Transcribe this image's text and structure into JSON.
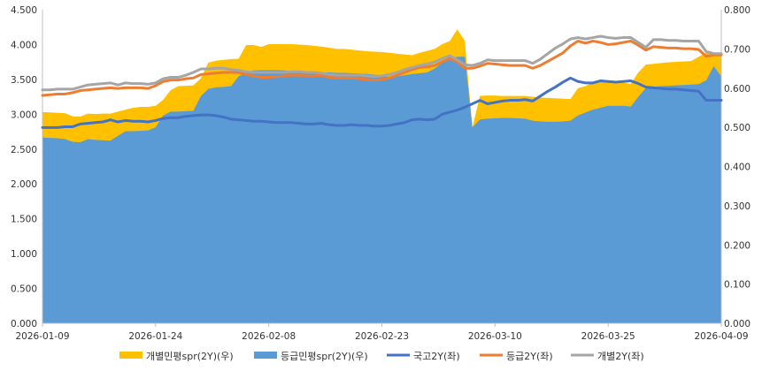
{
  "chart_data": {
    "type": "area",
    "title": "",
    "xlabel": "",
    "ylabel": "",
    "left_ylim": [
      0,
      4.5
    ],
    "right_ylim": [
      0,
      0.8
    ],
    "left_ticks": [
      "0.000",
      "0.500",
      "1.000",
      "1.500",
      "2.000",
      "2.500",
      "3.000",
      "3.500",
      "4.000",
      "4.500"
    ],
    "right_ticks": [
      "0.000",
      "0.100",
      "0.200",
      "0.300",
      "0.400",
      "0.500",
      "0.600",
      "0.700",
      "0.800"
    ],
    "x_ticks": [
      "2026-01-09",
      "2026-01-24",
      "2026-02-08",
      "2026-02-23",
      "2026-03-10",
      "2026-03-25",
      "2026-04-09"
    ],
    "x": [
      0,
      1,
      2,
      3,
      4,
      5,
      6,
      7,
      8,
      9,
      10,
      11,
      12,
      13,
      14,
      15,
      16,
      17,
      18,
      19,
      20,
      21,
      22,
      23,
      24,
      25,
      26,
      27,
      28,
      29,
      30,
      31,
      32,
      33,
      34,
      35,
      36,
      37,
      38,
      39,
      40,
      41,
      42,
      43,
      44,
      45,
      46,
      47,
      48,
      49,
      50,
      51,
      52,
      53,
      54,
      55,
      56,
      57,
      58,
      59,
      60,
      61,
      62,
      63,
      64,
      65,
      66,
      67,
      68,
      69,
      70,
      71,
      72,
      73,
      74,
      75,
      76,
      77,
      78,
      79,
      80,
      81,
      82,
      83,
      84,
      85,
      86,
      87,
      88,
      89,
      90
    ],
    "dates": [
      "2026-01-09",
      "",
      "",
      "",
      "",
      "",
      "",
      "",
      "",
      "",
      "",
      "",
      "",
      "",
      "",
      "2026-01-24",
      "",
      "",
      "",
      "",
      "",
      "",
      "",
      "",
      "",
      "",
      "",
      "",
      "",
      "",
      "2026-02-08",
      "",
      "",
      "",
      "",
      "",
      "",
      "",
      "",
      "",
      "",
      "",
      "",
      "",
      "",
      "2026-02-23",
      "",
      "",
      "",
      "",
      "",
      "",
      "",
      "",
      "",
      "",
      "",
      "",
      "",
      "",
      "2026-03-10",
      "",
      "",
      "",
      "",
      "",
      "",
      "",
      "",
      "",
      "",
      "",
      "",
      "",
      "",
      "2026-03-25",
      "",
      "",
      "",
      "",
      "",
      "",
      "",
      "",
      "",
      "",
      "",
      "",
      "",
      "",
      "2026-04-09"
    ],
    "grid": false,
    "legend_position": "bottom",
    "series": [
      {
        "name": "개별민평spr(2Y)(우)",
        "axis": "right",
        "kind": "area",
        "color": "#FFC000",
        "values": [
          0.539,
          0.538,
          0.537,
          0.536,
          0.528,
          0.527,
          0.535,
          0.534,
          0.535,
          0.535,
          0.54,
          0.545,
          0.55,
          0.552,
          0.552,
          0.555,
          0.57,
          0.595,
          0.605,
          0.606,
          0.607,
          0.625,
          0.665,
          0.67,
          0.672,
          0.674,
          0.675,
          0.71,
          0.71,
          0.705,
          0.712,
          0.712,
          0.712,
          0.712,
          0.711,
          0.71,
          0.708,
          0.706,
          0.703,
          0.7,
          0.7,
          0.698,
          0.696,
          0.694,
          0.693,
          0.692,
          0.69,
          0.688,
          0.686,
          0.684,
          0.69,
          0.695,
          0.7,
          0.712,
          0.72,
          0.75,
          0.72,
          0.5,
          0.58,
          0.581,
          0.581,
          0.58,
          0.58,
          0.58,
          0.58,
          0.578,
          0.576,
          0.575,
          0.574,
          0.573,
          0.572,
          0.6,
          0.605,
          0.615,
          0.618,
          0.62,
          0.617,
          0.614,
          0.611,
          0.64,
          0.66,
          0.662,
          0.664,
          0.666,
          0.667,
          0.668,
          0.669,
          0.68,
          0.69,
          0.69,
          0.69
        ]
      },
      {
        "name": "등급민평spr(2Y)(우)",
        "axis": "right",
        "kind": "area",
        "color": "#5B9BD5",
        "values": [
          0.474,
          0.473,
          0.472,
          0.47,
          0.463,
          0.462,
          0.47,
          0.468,
          0.467,
          0.466,
          0.478,
          0.49,
          0.49,
          0.491,
          0.492,
          0.5,
          0.53,
          0.54,
          0.54,
          0.541,
          0.542,
          0.58,
          0.598,
          0.602,
          0.603,
          0.605,
          0.63,
          0.64,
          0.645,
          0.646,
          0.646,
          0.646,
          0.645,
          0.644,
          0.643,
          0.642,
          0.641,
          0.64,
          0.64,
          0.639,
          0.639,
          0.638,
          0.637,
          0.636,
          0.634,
          0.633,
          0.628,
          0.63,
          0.633,
          0.636,
          0.638,
          0.64,
          0.65,
          0.665,
          0.675,
          0.68,
          0.68,
          0.5,
          0.52,
          0.522,
          0.523,
          0.524,
          0.524,
          0.523,
          0.522,
          0.517,
          0.515,
          0.514,
          0.514,
          0.515,
          0.517,
          0.53,
          0.538,
          0.545,
          0.55,
          0.555,
          0.555,
          0.555,
          0.553,
          0.578,
          0.6,
          0.603,
          0.605,
          0.606,
          0.607,
          0.608,
          0.609,
          0.61,
          0.62,
          0.656,
          0.63
        ]
      },
      {
        "name": "국고2Y(좌)",
        "axis": "left",
        "kind": "line",
        "color": "#4472C4",
        "values": [
          2.81,
          2.81,
          2.81,
          2.82,
          2.82,
          2.86,
          2.87,
          2.88,
          2.89,
          2.92,
          2.89,
          2.91,
          2.9,
          2.9,
          2.89,
          2.91,
          2.94,
          2.95,
          2.95,
          2.97,
          2.98,
          2.99,
          2.99,
          2.98,
          2.96,
          2.93,
          2.92,
          2.91,
          2.9,
          2.9,
          2.89,
          2.88,
          2.88,
          2.88,
          2.87,
          2.86,
          2.86,
          2.87,
          2.85,
          2.84,
          2.84,
          2.85,
          2.84,
          2.84,
          2.83,
          2.83,
          2.84,
          2.86,
          2.88,
          2.92,
          2.93,
          2.92,
          2.93,
          3.0,
          3.03,
          3.06,
          3.1,
          3.15,
          3.2,
          3.15,
          3.17,
          3.19,
          3.2,
          3.2,
          3.21,
          3.19,
          3.26,
          3.33,
          3.39,
          3.46,
          3.52,
          3.47,
          3.45,
          3.45,
          3.48,
          3.47,
          3.46,
          3.47,
          3.48,
          3.44,
          3.39,
          3.38,
          3.37,
          3.36,
          3.36,
          3.35,
          3.34,
          3.33,
          3.2,
          3.2,
          3.2
        ]
      },
      {
        "name": "등급2Y(좌)",
        "axis": "left",
        "kind": "line",
        "color": "#ED7D31",
        "values": [
          3.27,
          3.28,
          3.29,
          3.29,
          3.31,
          3.34,
          3.35,
          3.36,
          3.37,
          3.38,
          3.37,
          3.38,
          3.38,
          3.38,
          3.37,
          3.41,
          3.47,
          3.49,
          3.49,
          3.51,
          3.52,
          3.57,
          3.58,
          3.59,
          3.6,
          3.6,
          3.6,
          3.57,
          3.55,
          3.53,
          3.53,
          3.54,
          3.55,
          3.56,
          3.56,
          3.55,
          3.55,
          3.56,
          3.53,
          3.52,
          3.52,
          3.52,
          3.51,
          3.5,
          3.49,
          3.5,
          3.52,
          3.56,
          3.6,
          3.64,
          3.67,
          3.68,
          3.7,
          3.75,
          3.8,
          3.75,
          3.66,
          3.66,
          3.69,
          3.73,
          3.72,
          3.71,
          3.7,
          3.7,
          3.7,
          3.66,
          3.7,
          3.76,
          3.82,
          3.88,
          3.98,
          4.05,
          4.02,
          4.05,
          4.03,
          4.0,
          4.01,
          4.03,
          4.05,
          3.99,
          3.92,
          3.97,
          3.96,
          3.95,
          3.95,
          3.94,
          3.94,
          3.93,
          3.83,
          3.85,
          3.85
        ]
      },
      {
        "name": "개별2Y(좌)",
        "axis": "left",
        "kind": "line",
        "color": "#A5A5A5",
        "values": [
          3.35,
          3.35,
          3.36,
          3.36,
          3.36,
          3.39,
          3.42,
          3.43,
          3.44,
          3.45,
          3.42,
          3.45,
          3.44,
          3.44,
          3.43,
          3.45,
          3.51,
          3.53,
          3.53,
          3.56,
          3.6,
          3.65,
          3.65,
          3.66,
          3.66,
          3.64,
          3.63,
          3.61,
          3.6,
          3.6,
          3.6,
          3.6,
          3.6,
          3.61,
          3.61,
          3.6,
          3.6,
          3.59,
          3.57,
          3.56,
          3.56,
          3.56,
          3.56,
          3.55,
          3.54,
          3.55,
          3.57,
          3.6,
          3.64,
          3.67,
          3.7,
          3.72,
          3.75,
          3.8,
          3.84,
          3.78,
          3.71,
          3.7,
          3.73,
          3.78,
          3.77,
          3.77,
          3.77,
          3.77,
          3.77,
          3.73,
          3.79,
          3.87,
          3.95,
          4.01,
          4.08,
          4.1,
          4.08,
          4.1,
          4.12,
          4.1,
          4.09,
          4.1,
          4.1,
          4.03,
          3.96,
          4.07,
          4.07,
          4.06,
          4.06,
          4.05,
          4.05,
          4.05,
          3.9,
          3.87,
          3.87
        ]
      }
    ]
  },
  "legend": [
    {
      "label": "개별민평spr(2Y)(우)",
      "color": "#FFC000",
      "marker": "box"
    },
    {
      "label": "등급민평spr(2Y)(우)",
      "color": "#5B9BD5",
      "marker": "box"
    },
    {
      "label": "국고2Y(좌)",
      "color": "#4472C4",
      "marker": "line"
    },
    {
      "label": "등급2Y(좌)",
      "color": "#ED7D31",
      "marker": "line"
    },
    {
      "label": "개별2Y(좌)",
      "color": "#A5A5A5",
      "marker": "line"
    }
  ]
}
